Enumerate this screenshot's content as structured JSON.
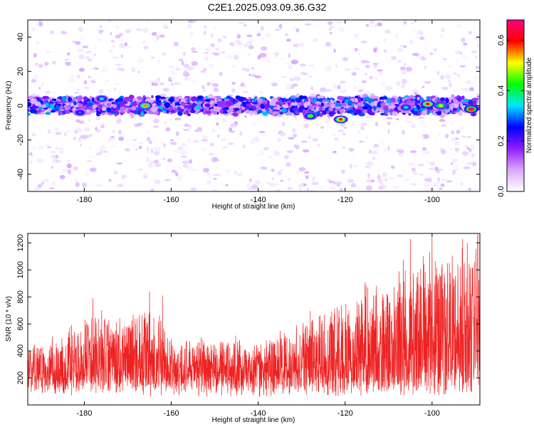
{
  "title": "C2E1.2025.093.09.36.G32",
  "chart_data": [
    {
      "type": "heatmap",
      "xlabel": "Height of straight line (km)",
      "ylabel": "Frequency (Hz)",
      "xlim": [
        -193,
        -89
      ],
      "ylim": [
        -50,
        50
      ],
      "x_ticks": [
        -180,
        -160,
        -140,
        -120,
        -100
      ],
      "y_ticks": [
        -40,
        -20,
        0,
        20,
        40
      ],
      "band_center_hz": 0,
      "band_halfwidth_hz": 5,
      "colorbar": {
        "label": "Normalized spectral amplitude",
        "range": [
          0,
          0.68
        ],
        "ticks": [
          0.0,
          0.2,
          0.4,
          0.6
        ],
        "colors": [
          "#ffffff",
          "#d9a8ff",
          "#8f1cff",
          "#0000ff",
          "#00e5ff",
          "#00ff00",
          "#ffff00",
          "#ff0000",
          "#ff0080"
        ]
      },
      "hotspots": [
        {
          "x": -166,
          "y": 0,
          "v": 0.55
        },
        {
          "x": -121,
          "y": -8,
          "v": 0.6
        },
        {
          "x": -128,
          "y": -6,
          "v": 0.45
        },
        {
          "x": -101,
          "y": 1,
          "v": 0.62
        },
        {
          "x": -98,
          "y": 0,
          "v": 0.5
        },
        {
          "x": -91,
          "y": -2,
          "v": 0.68
        },
        {
          "x": -176,
          "y": 4,
          "v": 0.35
        },
        {
          "x": -181,
          "y": -4,
          "v": 0.3
        },
        {
          "x": -106,
          "y": -1,
          "v": 0.35
        }
      ],
      "grid": false
    },
    {
      "type": "line",
      "xlabel": "Height of straight line (km)",
      "ylabel": "SNR (10 * v/v)",
      "xlim": [
        -193,
        -89
      ],
      "ylim": [
        0,
        1270
      ],
      "x_ticks": [
        -180,
        -160,
        -140,
        -120,
        -100
      ],
      "y_ticks": [
        200,
        400,
        600,
        800,
        1000,
        1200
      ],
      "color": "#ee2222",
      "envelope": [
        {
          "x": -193,
          "y": 480
        },
        {
          "x": -185,
          "y": 530
        },
        {
          "x": -178,
          "y": 760
        },
        {
          "x": -170,
          "y": 700
        },
        {
          "x": -165,
          "y": 820
        },
        {
          "x": -160,
          "y": 560
        },
        {
          "x": -150,
          "y": 520
        },
        {
          "x": -140,
          "y": 540
        },
        {
          "x": -130,
          "y": 640
        },
        {
          "x": -125,
          "y": 800
        },
        {
          "x": -118,
          "y": 900
        },
        {
          "x": -110,
          "y": 980
        },
        {
          "x": -104,
          "y": 1160
        },
        {
          "x": -99,
          "y": 1240
        },
        {
          "x": -94,
          "y": 1200
        },
        {
          "x": -89,
          "y": 1250
        }
      ],
      "peaks": [
        {
          "x": -178,
          "y": 790
        },
        {
          "x": -165,
          "y": 840
        },
        {
          "x": -162,
          "y": 810
        },
        {
          "x": -105,
          "y": 1230
        },
        {
          "x": -100,
          "y": 1240
        },
        {
          "x": -93,
          "y": 1230
        },
        {
          "x": -89.5,
          "y": 1260
        }
      ],
      "grid": false
    }
  ]
}
